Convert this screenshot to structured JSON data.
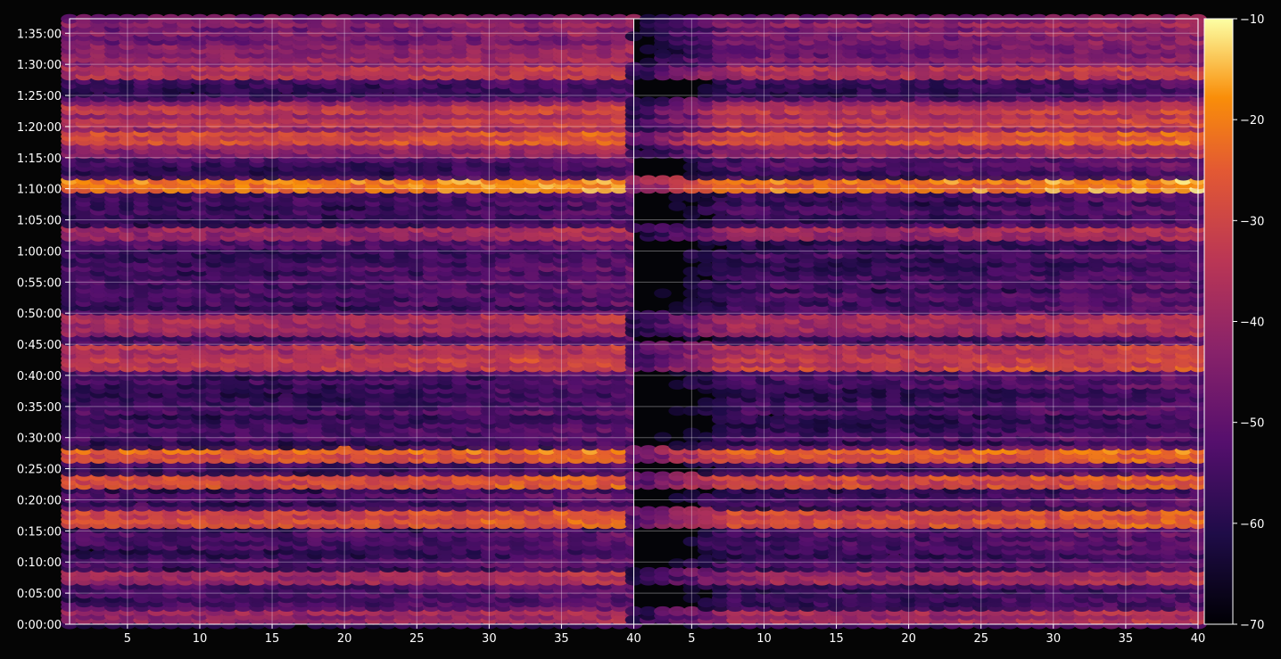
{
  "chart_data": {
    "type": "heatmap",
    "title": "",
    "xlabel": "",
    "ylabel": "",
    "grid": true,
    "colormap": "inferno",
    "panels": [
      {
        "name": "",
        "x_range": [
          1,
          40
        ]
      },
      {
        "name": "",
        "x_range": [
          1,
          40
        ]
      }
    ],
    "x_tick_values": [
      5,
      10,
      15,
      20,
      25,
      30,
      35,
      40
    ],
    "x_tick_labels": [
      "5",
      "10",
      "15",
      "20",
      "25",
      "30",
      "35",
      "40"
    ],
    "y_range_seconds": [
      0,
      5840
    ],
    "y_tick_seconds": [
      0,
      300,
      600,
      900,
      1200,
      1500,
      1800,
      2100,
      2400,
      2700,
      3000,
      3300,
      3600,
      3900,
      4200,
      4500,
      4800,
      5100,
      5400,
      5700
    ],
    "y_tick_labels": [
      "0:00:00",
      "0:05:00",
      "0:10:00",
      "0:15:00",
      "0:20:00",
      "0:25:00",
      "0:30:00",
      "0:35:00",
      "0:40:00",
      "0:45:00",
      "0:50:00",
      "0:55:00",
      "1:00:00",
      "1:05:00",
      "1:10:00",
      "1:15:00",
      "1:20:00",
      "1:25:00",
      "1:30:00",
      "1:35:00"
    ],
    "colorbar": {
      "range": [
        -70,
        -10
      ],
      "ticks": [
        -10,
        -20,
        -30,
        -40,
        -50,
        -60,
        -70
      ],
      "tick_labels": [
        "−10",
        "−20",
        "−30",
        "−40",
        "−50",
        "−60",
        "−70"
      ]
    },
    "bright_bands": [
      {
        "time_s": 4240,
        "level": -25
      },
      {
        "time_s": 4720,
        "level": -33
      },
      {
        "time_s": 4850,
        "level": -36
      },
      {
        "time_s": 4980,
        "level": -38
      },
      {
        "time_s": 5320,
        "level": -40
      },
      {
        "time_s": 3770,
        "level": -45
      },
      {
        "time_s": 2840,
        "level": -44
      },
      {
        "time_s": 2960,
        "level": -42
      },
      {
        "time_s": 2520,
        "level": -36
      },
      {
        "time_s": 2640,
        "level": -40
      },
      {
        "time_s": 1630,
        "level": -31
      },
      {
        "time_s": 1380,
        "level": -34
      },
      {
        "time_s": 990,
        "level": -32
      },
      {
        "time_s": 1060,
        "level": -34
      },
      {
        "time_s": 460,
        "level": -44
      },
      {
        "time_s": 90,
        "level": -44
      }
    ]
  }
}
